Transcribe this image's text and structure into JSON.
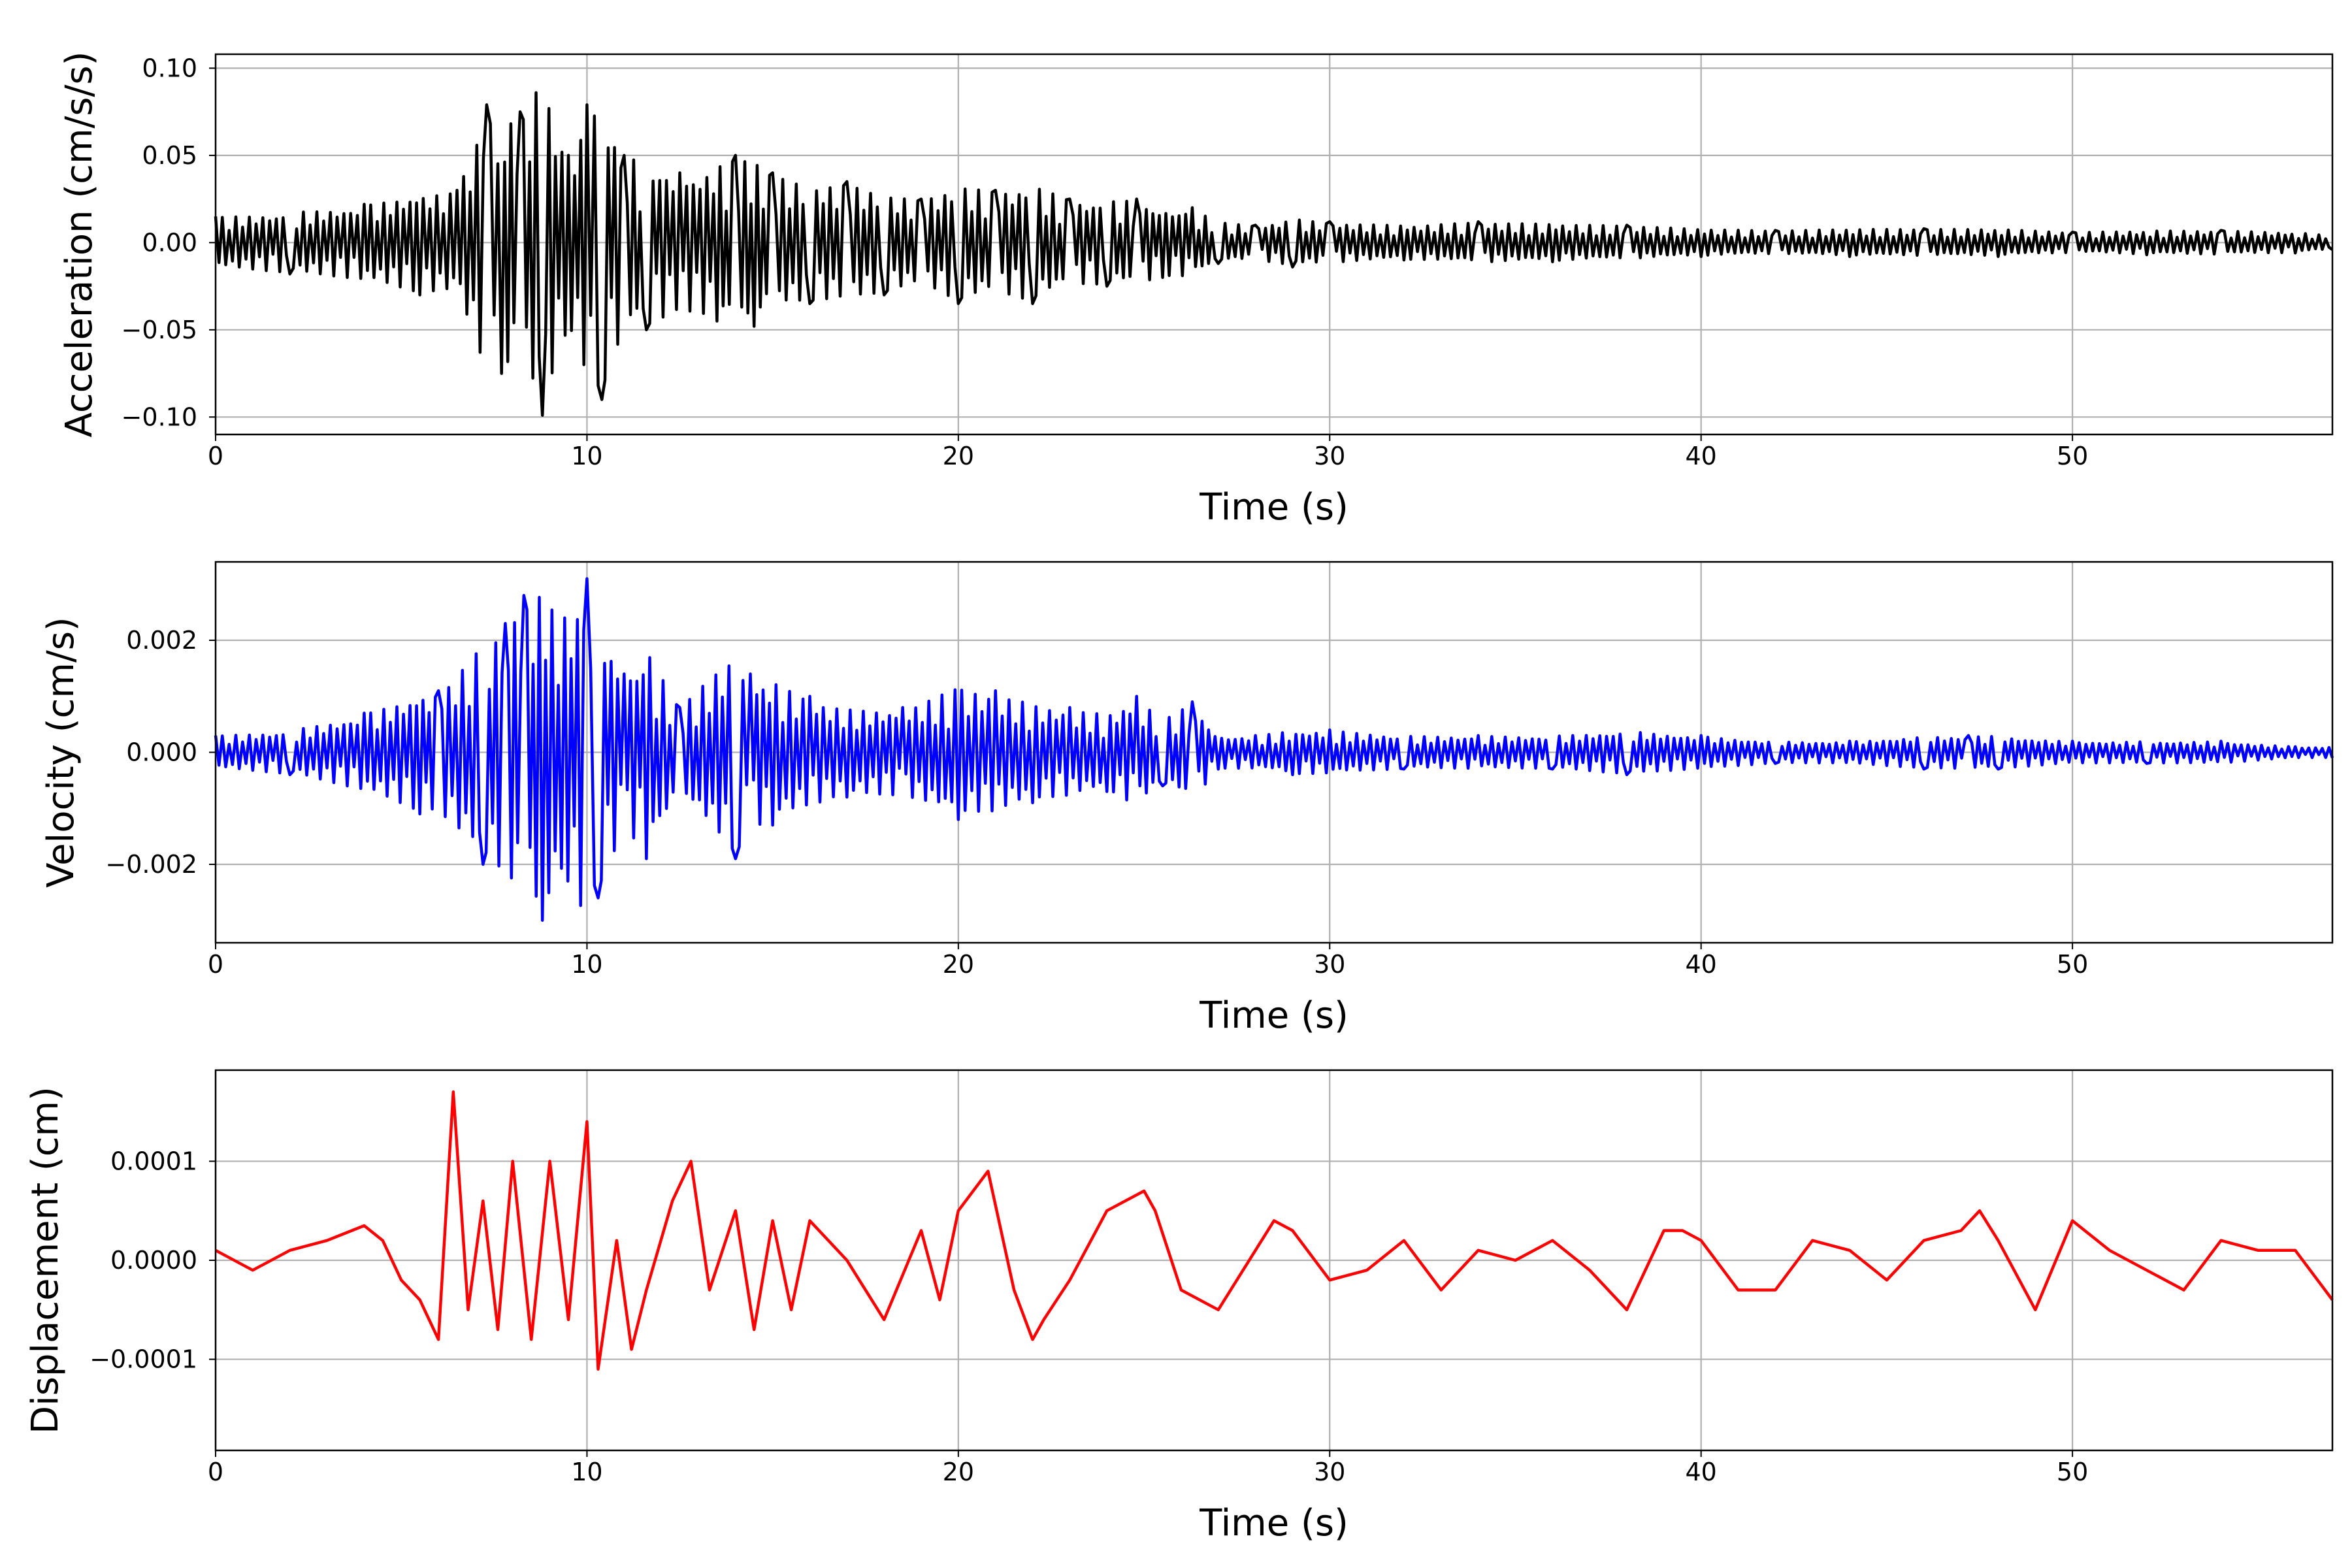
{
  "chart_data": [
    {
      "type": "line",
      "title": "",
      "xlabel": "Time (s)",
      "ylabel": "Acceleration (cm/s/s)",
      "xlim": [
        0,
        57
      ],
      "ylim": [
        -0.11,
        0.108
      ],
      "xticks": [
        0,
        10,
        20,
        30,
        40,
        50
      ],
      "xtick_labels": [
        "0",
        "10",
        "20",
        "30",
        "40",
        "50"
      ],
      "yticks": [
        -0.1,
        -0.05,
        0.0,
        0.05,
        0.1
      ],
      "ytick_labels": [
        "−0.10",
        "−0.05",
        "0.00",
        "0.05",
        "0.10"
      ],
      "grid": true,
      "color": "#000000",
      "series": [
        {
          "x": [
            0,
            2,
            4,
            5.5,
            6.5,
            7.3,
            7.7,
            8.2,
            8.8,
            9.5,
            10.0,
            10.4,
            11.0,
            11.6,
            12.5,
            13.5,
            14.0,
            14.5,
            15.0,
            16.0,
            17.0,
            18.0,
            19.0,
            20.0,
            21.0,
            22.0,
            23.0,
            24.0,
            24.8,
            25.5,
            26.3,
            27.0,
            28.0,
            29.0,
            30.0,
            32.0,
            34.0,
            36.0,
            38.0,
            40.0,
            42.0,
            44.0,
            46.0,
            48.0,
            50.0,
            52.0,
            54.0,
            56.0,
            57.0
          ],
          "y": [
            0.015,
            -0.018,
            0.022,
            -0.03,
            0.03,
            0.079,
            -0.075,
            0.075,
            -0.099,
            0.05,
            0.079,
            -0.09,
            0.05,
            -0.05,
            0.04,
            -0.045,
            0.05,
            -0.048,
            0.04,
            -0.035,
            0.035,
            -0.03,
            0.025,
            -0.035,
            0.03,
            -0.035,
            0.025,
            -0.025,
            0.025,
            -0.02,
            0.02,
            -0.012,
            0.01,
            -0.014,
            0.012,
            -0.01,
            0.012,
            -0.011,
            0.01,
            -0.008,
            0.007,
            -0.008,
            0.008,
            -0.008,
            0.006,
            -0.007,
            0.007,
            -0.006,
            -0.004
          ]
        }
      ]
    },
    {
      "type": "line",
      "title": "",
      "xlabel": "Time (s)",
      "ylabel": "Velocity (cm/s)",
      "xlim": [
        0,
        57
      ],
      "ylim": [
        -0.0034,
        0.0034
      ],
      "xticks": [
        0,
        10,
        20,
        30,
        40,
        50
      ],
      "xtick_labels": [
        "0",
        "10",
        "20",
        "30",
        "40",
        "50"
      ],
      "yticks": [
        -0.002,
        0.0,
        0.002
      ],
      "ytick_labels": [
        "−0.002",
        "0.000",
        "0.002"
      ],
      "grid": true,
      "color": "#0000ff",
      "series": [
        {
          "x": [
            0,
            2,
            4,
            5.5,
            6.0,
            7.2,
            7.8,
            8.3,
            8.8,
            9.4,
            10.0,
            10.3,
            11.0,
            11.6,
            12.5,
            14.0,
            14.4,
            15.0,
            16.0,
            17.0,
            18.5,
            20.0,
            21.0,
            22.0,
            23.0,
            24.0,
            24.8,
            25.5,
            26.3,
            27.0,
            28.0,
            29.0,
            30.0,
            32.0,
            34.0,
            36.0,
            38.0,
            40.0,
            42.0,
            44.0,
            46.0,
            47.2,
            48.0,
            50.0,
            52.0,
            54.0,
            56.0,
            57.0
          ],
          "y": [
            0.0003,
            -0.0004,
            0.0007,
            -0.0011,
            0.0011,
            -0.002,
            0.0023,
            0.0028,
            -0.003,
            0.0024,
            0.0031,
            -0.0026,
            0.0014,
            -0.0019,
            0.0008,
            -0.0019,
            0.0014,
            -0.0013,
            0.001,
            -0.0008,
            0.0008,
            -0.0012,
            0.0011,
            -0.0009,
            0.0008,
            -0.0007,
            0.001,
            -0.0006,
            0.0009,
            -0.0003,
            0.0003,
            -0.0004,
            0.0004,
            -0.0003,
            0.0003,
            -0.0003,
            -0.0004,
            0.0003,
            -0.0002,
            0.0002,
            -0.0003,
            0.0003,
            -0.0003,
            0.0002,
            -0.0002,
            0.0002,
            0.0001,
            -0.0001
          ]
        }
      ]
    },
    {
      "type": "line",
      "title": "",
      "xlabel": "Time (s)",
      "ylabel": "Displacement (cm)",
      "xlim": [
        0,
        57
      ],
      "ylim": [
        -0.000192,
        0.000192
      ],
      "xticks": [
        0,
        10,
        20,
        30,
        40,
        50
      ],
      "xtick_labels": [
        "0",
        "10",
        "20",
        "30",
        "40",
        "50"
      ],
      "yticks": [
        -0.0001,
        0.0,
        0.0001
      ],
      "ytick_labels": [
        "−0.0001",
        "0.0000",
        "0.0001"
      ],
      "grid": true,
      "color": "#ff0000",
      "series": [
        {
          "x": [
            0,
            1,
            2,
            3,
            4,
            4.5,
            5,
            5.5,
            6.0,
            6.4,
            6.8,
            7.2,
            7.6,
            8.0,
            8.5,
            9.0,
            9.5,
            10.0,
            10.3,
            10.8,
            11.2,
            11.6,
            12.3,
            12.8,
            13.3,
            14.0,
            14.5,
            15.0,
            15.5,
            16.0,
            17.0,
            18.0,
            19.0,
            19.5,
            20.0,
            20.8,
            21.5,
            22.0,
            22.3,
            23.0,
            24.0,
            25.0,
            25.3,
            26.0,
            27.0,
            28.0,
            28.5,
            29.0,
            30.0,
            31.0,
            32.0,
            33.0,
            34.0,
            35.0,
            36.0,
            37.0,
            38.0,
            39.0,
            39.5,
            40.0,
            41.0,
            42.0,
            43.0,
            44.0,
            45.0,
            46.0,
            47.0,
            47.5,
            48.0,
            49.0,
            50.0,
            51.0,
            52.0,
            53.0,
            54.0,
            55.0,
            56.0,
            57.0
          ],
          "y": [
            1e-05,
            -1e-05,
            1e-05,
            2e-05,
            3.5e-05,
            2e-05,
            -2e-05,
            -4e-05,
            -8e-05,
            0.00017,
            -5e-05,
            6e-05,
            -7e-05,
            0.0001,
            -8e-05,
            0.0001,
            -6e-05,
            0.00014,
            -0.00011,
            2e-05,
            -9e-05,
            -3e-05,
            6e-05,
            0.0001,
            -3e-05,
            5e-05,
            -7e-05,
            4e-05,
            -5e-05,
            4e-05,
            0.0,
            -6e-05,
            3e-05,
            -4e-05,
            5e-05,
            9e-05,
            -3e-05,
            -8e-05,
            -6e-05,
            -2e-05,
            5e-05,
            7e-05,
            5e-05,
            -3e-05,
            -5e-05,
            1e-05,
            4e-05,
            3e-05,
            -2e-05,
            -1e-05,
            2e-05,
            -3e-05,
            1e-05,
            0.0,
            2e-05,
            -1e-05,
            -5e-05,
            3e-05,
            3e-05,
            2e-05,
            -3e-05,
            -3e-05,
            2e-05,
            1e-05,
            -2e-05,
            2e-05,
            3e-05,
            5e-05,
            2e-05,
            -5e-05,
            4e-05,
            1e-05,
            -1e-05,
            -3e-05,
            2e-05,
            1e-05,
            1e-05,
            -4e-05
          ]
        }
      ]
    }
  ]
}
